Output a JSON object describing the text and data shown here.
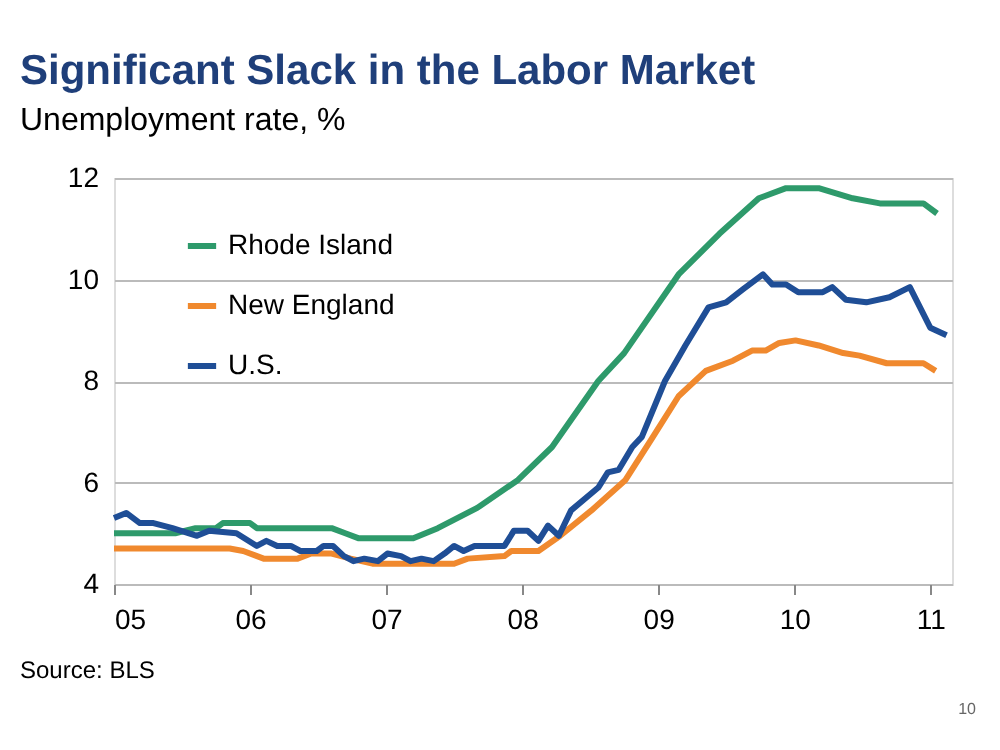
{
  "chart_data": {
    "type": "line",
    "title": "Significant Slack in the Labor Market",
    "subtitle": "Unemployment rate, %",
    "annotations": [
      "Source: BLS",
      "10"
    ],
    "xlim": [
      5,
      11.16
    ],
    "xticks": [
      {
        "value": 5,
        "label": "05"
      },
      {
        "value": 6,
        "label": "06"
      },
      {
        "value": 7,
        "label": "07"
      },
      {
        "value": 8,
        "label": "08"
      },
      {
        "value": 9,
        "label": "09"
      },
      {
        "value": 10,
        "label": "10"
      },
      {
        "value": 11,
        "label": "11"
      }
    ],
    "ylim": [
      4,
      12
    ],
    "yticks": [
      4,
      6,
      8,
      10,
      12
    ],
    "grid": "y",
    "legend": "top left",
    "line_style": "solid",
    "marker": "none",
    "series": [
      {
        "name": "Rhode Island",
        "color": "#2e9a6b",
        "x": [
          5.0,
          5.45,
          5.6,
          5.75,
          5.8,
          6.0,
          6.05,
          6.6,
          6.7,
          6.8,
          7.2,
          7.38,
          7.67,
          7.97,
          8.22,
          8.56,
          8.75,
          9.15,
          9.45,
          9.74,
          9.94,
          10.18,
          10.43,
          10.63,
          10.95,
          11.05
        ],
        "values": [
          5.0,
          5.0,
          5.1,
          5.1,
          5.2,
          5.2,
          5.1,
          5.1,
          5.0,
          4.9,
          4.9,
          5.1,
          5.5,
          6.05,
          6.7,
          8.0,
          8.55,
          10.1,
          10.9,
          11.6,
          11.8,
          11.8,
          11.6,
          11.5,
          11.5,
          11.3
        ]
      },
      {
        "name": "New England",
        "color": "#f0892e",
        "x": [
          5.0,
          5.85,
          5.95,
          6.1,
          6.35,
          6.45,
          6.6,
          6.74,
          6.9,
          7.5,
          7.6,
          7.87,
          7.92,
          8.12,
          8.28,
          8.51,
          8.76,
          8.95,
          9.15,
          9.35,
          9.55,
          9.69,
          9.79,
          9.89,
          10.01,
          10.18,
          10.36,
          10.48,
          10.68,
          10.95,
          11.04
        ],
        "values": [
          4.7,
          4.7,
          4.65,
          4.5,
          4.5,
          4.6,
          4.6,
          4.5,
          4.4,
          4.4,
          4.5,
          4.55,
          4.65,
          4.65,
          4.95,
          5.45,
          6.05,
          6.85,
          7.7,
          8.2,
          8.4,
          8.6,
          8.6,
          8.75,
          8.8,
          8.7,
          8.55,
          8.5,
          8.35,
          8.35,
          8.2
        ]
      },
      {
        "name": "U.S.",
        "color": "#1f4e96",
        "x": [
          5.0,
          5.09,
          5.19,
          5.29,
          5.43,
          5.61,
          5.7,
          5.9,
          6.05,
          6.12,
          6.2,
          6.3,
          6.37,
          6.49,
          6.54,
          6.61,
          6.69,
          6.76,
          6.84,
          6.94,
          7.01,
          7.11,
          7.18,
          7.26,
          7.35,
          7.43,
          7.5,
          7.57,
          7.65,
          7.87,
          7.94,
          8.04,
          8.12,
          8.19,
          8.27,
          8.36,
          8.56,
          8.63,
          8.71,
          8.81,
          8.88,
          9.05,
          9.2,
          9.37,
          9.5,
          9.62,
          9.77,
          9.84,
          9.94,
          10.03,
          10.21,
          10.28,
          10.38,
          10.53,
          10.7,
          10.85,
          11.0,
          11.12
        ],
        "values": [
          5.3,
          5.4,
          5.2,
          5.2,
          5.1,
          4.95,
          5.05,
          5.0,
          4.75,
          4.85,
          4.75,
          4.75,
          4.65,
          4.65,
          4.75,
          4.75,
          4.55,
          4.45,
          4.5,
          4.45,
          4.6,
          4.55,
          4.45,
          4.5,
          4.45,
          4.6,
          4.75,
          4.65,
          4.75,
          4.75,
          5.05,
          5.05,
          4.85,
          5.15,
          4.95,
          5.45,
          5.9,
          6.2,
          6.25,
          6.7,
          6.9,
          8.0,
          8.7,
          9.45,
          9.55,
          9.8,
          10.1,
          9.9,
          9.9,
          9.75,
          9.75,
          9.85,
          9.6,
          9.55,
          9.65,
          9.85,
          9.05,
          8.9
        ]
      }
    ]
  }
}
